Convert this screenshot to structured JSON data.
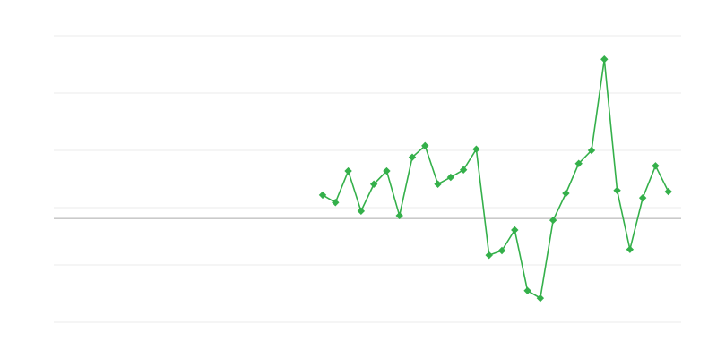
{
  "chart_data": {
    "type": "line",
    "title": "",
    "xlabel": "",
    "ylabel": "",
    "xlim": [
      0,
      49
    ],
    "ylim": [
      -2,
      3
    ],
    "grid": true,
    "gridlines_y": [
      -2,
      -1,
      0,
      1,
      2,
      3
    ],
    "reference_line_y": -0.19,
    "series": [
      {
        "color": "#34b04a",
        "marker": "diamond",
        "x": [
          21,
          22,
          23,
          24,
          25,
          26,
          27,
          28,
          29,
          30,
          31,
          32,
          33,
          34,
          35,
          36,
          37,
          38,
          39,
          40,
          41,
          42,
          43,
          44,
          45,
          46,
          47,
          48
        ],
        "values": [
          0.22,
          0.09,
          0.64,
          -0.06,
          0.41,
          0.64,
          -0.14,
          0.88,
          1.08,
          0.41,
          0.53,
          0.66,
          1.02,
          -0.83,
          -0.75,
          -0.39,
          -1.45,
          -1.58,
          -0.22,
          0.25,
          0.77,
          1.0,
          2.59,
          0.3,
          -0.73,
          0.17,
          0.73,
          0.28
        ]
      }
    ],
    "colors": {
      "grid": "#ebebeb",
      "reference_line": "#aaaaaa"
    }
  }
}
